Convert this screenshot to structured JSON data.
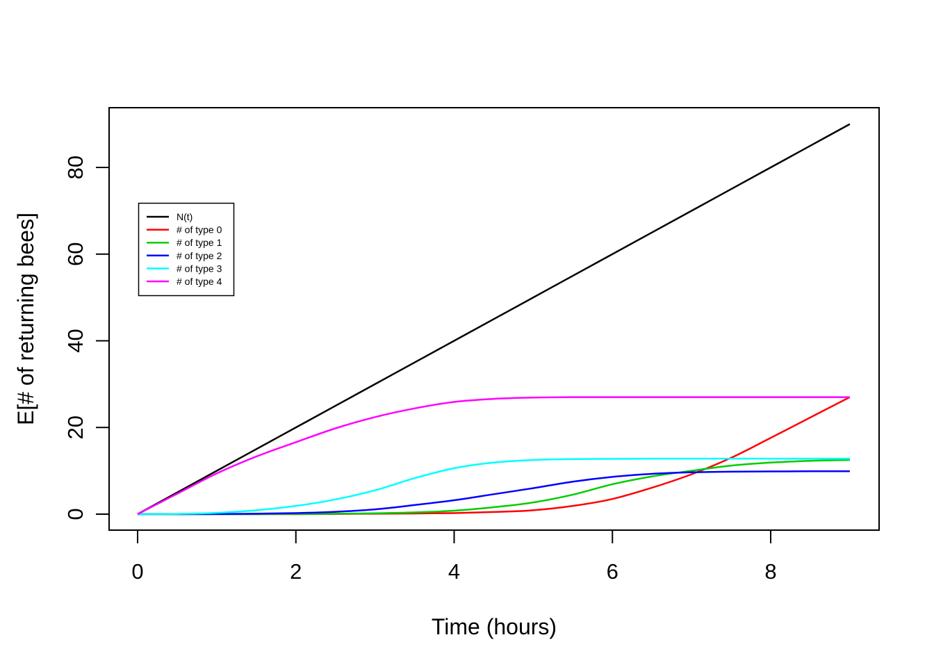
{
  "chart_data": {
    "type": "line",
    "title": "",
    "xlabel": "Time (hours)",
    "ylabel": "E[# of returning bees]",
    "xlim": [
      0,
      9
    ],
    "ylim": [
      0,
      90
    ],
    "x_ticks": [
      0,
      2,
      4,
      6,
      8
    ],
    "y_ticks": [
      0,
      20,
      40,
      60,
      80
    ],
    "grid": false,
    "x": [
      0,
      0.5,
      1,
      1.5,
      2,
      2.5,
      3,
      3.5,
      4,
      4.5,
      5,
      5.5,
      6,
      6.5,
      7,
      7.5,
      8,
      8.5,
      9
    ],
    "series": [
      {
        "name": "N(t)",
        "color": "#000000",
        "values": [
          0,
          5,
          10,
          15,
          20,
          25,
          30,
          35,
          40,
          45,
          50,
          55,
          60,
          65,
          70,
          75,
          80,
          85,
          90
        ]
      },
      {
        "name": "# of type 0",
        "color": "#FF0000",
        "values": [
          0,
          0,
          0,
          0,
          0,
          0.05,
          0.1,
          0.15,
          0.25,
          0.5,
          0.9,
          1.9,
          3.5,
          6.1,
          9.2,
          13.0,
          17.6,
          22.3,
          27
        ]
      },
      {
        "name": "# of type 1",
        "color": "#00CD00",
        "values": [
          0,
          0,
          0,
          0,
          0.05,
          0.1,
          0.2,
          0.4,
          0.8,
          1.6,
          2.7,
          4.5,
          6.9,
          8.7,
          10.0,
          11.2,
          11.9,
          12.3,
          12.5
        ]
      },
      {
        "name": "# of type 2",
        "color": "#0000FF",
        "values": [
          0,
          0,
          0.05,
          0.1,
          0.25,
          0.55,
          1.1,
          2.1,
          3.2,
          4.6,
          6.0,
          7.5,
          8.6,
          9.3,
          9.65,
          9.8,
          9.85,
          9.9,
          9.9
        ]
      },
      {
        "name": "# of type 3",
        "color": "#00FFFF",
        "values": [
          0,
          0.05,
          0.3,
          0.9,
          1.9,
          3.4,
          5.5,
          8.3,
          10.6,
          11.9,
          12.5,
          12.7,
          12.75,
          12.8,
          12.8,
          12.8,
          12.8,
          12.8,
          12.8
        ]
      },
      {
        "name": "# of type 4",
        "color": "#FF00FF",
        "values": [
          0,
          4.7,
          9.4,
          13.3,
          16.6,
          19.8,
          22.4,
          24.4,
          25.9,
          26.6,
          26.9,
          27,
          27,
          27,
          27,
          27,
          27,
          27,
          27
        ]
      }
    ],
    "legend": {
      "position": "upper-left",
      "entries": [
        "N(t)",
        "# of type 0",
        "# of type 1",
        "# of type 2",
        "# of type 3",
        "# of type 4"
      ]
    }
  }
}
